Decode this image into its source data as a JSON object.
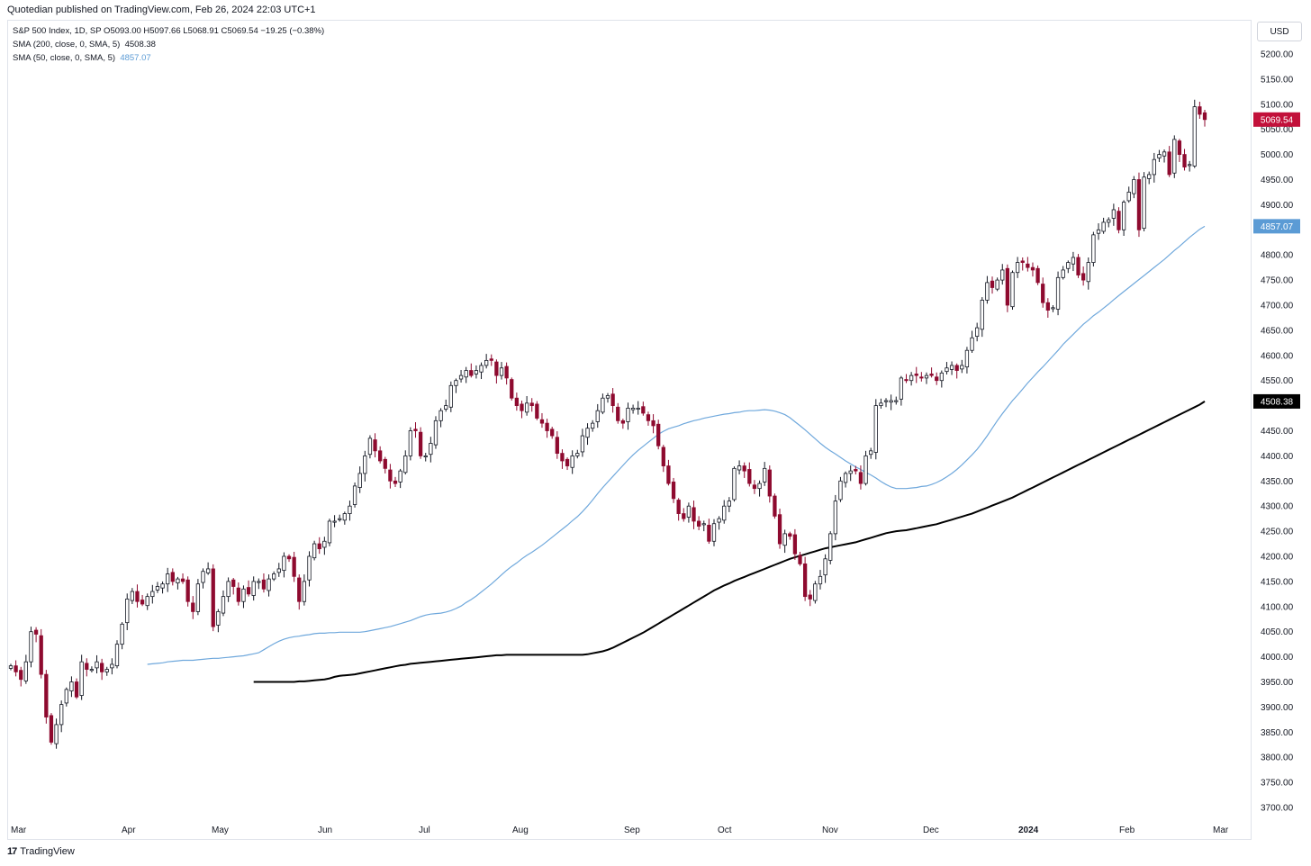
{
  "header": {
    "published": "Quotedian published on TradingView.com, Feb 26, 2024 22:03 UTC+1",
    "currency_button": "USD",
    "footer_brand": "TradingView",
    "footer_logo_glyph": "17"
  },
  "legend": {
    "symbol_line": "S&P 500 Index, 1D, SP  O5093.00  H5097.66  L5068.91  C5069.54  −19.25 (−0.38%)",
    "sma200_text": "SMA (200, close, 0, SMA, 5)",
    "sma200_value": "4508.38",
    "sma50_text": "SMA (50, close, 0, SMA, 5)",
    "sma50_value": "4857.07"
  },
  "colors": {
    "up_body": "#ffffff",
    "candle_outline": "#131722",
    "down_body": "#8e0a2f",
    "sma200": "#000000",
    "sma50": "#6fa8dc",
    "last_price_label": "#c2103a",
    "sma50_label": "#5b9bd5",
    "sma200_label": "#000000"
  },
  "chart_data": {
    "type": "candlestick",
    "title": "S&P 500 Index, 1D, SP",
    "ylim": [
      3650,
      5250
    ],
    "y_ticks": [
      3700,
      3750,
      3800,
      3850,
      3900,
      3950,
      4000,
      4050,
      4100,
      4150,
      4200,
      4250,
      4300,
      4350,
      4400,
      4450,
      4500,
      4550,
      4600,
      4650,
      4700,
      4750,
      4800,
      4850,
      4900,
      4950,
      5000,
      5050,
      5100,
      5150,
      5200
    ],
    "x_ticks": [
      {
        "label": "Mar",
        "bold": false
      },
      {
        "label": "Apr",
        "bold": false
      },
      {
        "label": "May",
        "bold": false
      },
      {
        "label": "Jun",
        "bold": false
      },
      {
        "label": "Jul",
        "bold": false
      },
      {
        "label": "Aug",
        "bold": false
      },
      {
        "label": "Sep",
        "bold": false
      },
      {
        "label": "Oct",
        "bold": false
      },
      {
        "label": "Nov",
        "bold": false
      },
      {
        "label": "Dec",
        "bold": false
      },
      {
        "label": "2024",
        "bold": true
      },
      {
        "label": "Feb",
        "bold": false
      },
      {
        "label": "Mar",
        "bold": false
      }
    ],
    "closes": [
      3982,
      3970,
      3955,
      3990,
      4050,
      4045,
      3965,
      3880,
      3830,
      3865,
      3905,
      3935,
      3950,
      3920,
      3990,
      3975,
      3975,
      3990,
      3970,
      3975,
      3985,
      4025,
      4065,
      4115,
      4130,
      4110,
      4105,
      4120,
      4130,
      4140,
      4145,
      4165,
      4150,
      4155,
      4150,
      4110,
      4090,
      4145,
      4170,
      4175,
      4060,
      4090,
      4120,
      4150,
      4140,
      4110,
      4135,
      4125,
      4150,
      4150,
      4135,
      4155,
      4165,
      4175,
      4200,
      4195,
      4160,
      4110,
      4150,
      4200,
      4225,
      4215,
      4230,
      4270,
      4270,
      4275,
      4285,
      4300,
      4340,
      4365,
      4400,
      4435,
      4410,
      4390,
      4375,
      4350,
      4345,
      4370,
      4400,
      4450,
      4450,
      4400,
      4400,
      4425,
      4470,
      4490,
      4500,
      4540,
      4550,
      4560,
      4570,
      4560,
      4570,
      4580,
      4590,
      4590,
      4560,
      4575,
      4555,
      4515,
      4500,
      4490,
      4505,
      4500,
      4475,
      4465,
      4450,
      4440,
      4405,
      4390,
      4380,
      4400,
      4405,
      4440,
      4455,
      4465,
      4490,
      4515,
      4520,
      4500,
      4470,
      4465,
      4495,
      4495,
      4495,
      4485,
      4470,
      4460,
      4420,
      4380,
      4345,
      4315,
      4285,
      4275,
      4300,
      4270,
      4260,
      4265,
      4230,
      4265,
      4275,
      4300,
      4310,
      4375,
      4380,
      4370,
      4345,
      4335,
      4345,
      4375,
      4320,
      4280,
      4225,
      4245,
      4240,
      4205,
      4185,
      4120,
      4115,
      4145,
      4160,
      4195,
      4245,
      4310,
      4350,
      4365,
      4370,
      4370,
      4345,
      4400,
      4410,
      4500,
      4505,
      4510,
      4510,
      4510,
      4555,
      4550,
      4560,
      4560,
      4555,
      4560,
      4560,
      4550,
      4565,
      4575,
      4580,
      4570,
      4580,
      4610,
      4635,
      4655,
      4710,
      4745,
      4735,
      4750,
      4770,
      4700,
      4765,
      4785,
      4785,
      4775,
      4770,
      4745,
      4705,
      4690,
      4695,
      4755,
      4770,
      4785,
      4795,
      4760,
      4750,
      4785,
      4840,
      4850,
      4865,
      4870,
      4890,
      4850,
      4905,
      4925,
      4950,
      4850,
      4955,
      4960,
      4990,
      5000,
      5005,
      4960,
      5030,
      5000,
      4975,
      4980,
      5095,
      5080,
      5069.54
    ],
    "sma50": [
      3985,
      3986,
      3987,
      3988,
      3990,
      3991,
      3992,
      3993,
      3993,
      3993,
      3994,
      3995,
      3996,
      3997,
      3997,
      3998,
      3999,
      4000,
      4001,
      4002,
      4004,
      4006,
      4008,
      4014,
      4020,
      4026,
      4031,
      4035,
      4038,
      4040,
      4041,
      4043,
      4044,
      4046,
      4047,
      4047,
      4048,
      4048,
      4049,
      4049,
      4049,
      4049,
      4049,
      4050,
      4052,
      4054,
      4056,
      4058,
      4060,
      4063,
      4066,
      4069,
      4072,
      4076,
      4080,
      4083,
      4085,
      4086,
      4087,
      4089,
      4092,
      4096,
      4101,
      4108,
      4114,
      4121,
      4129,
      4137,
      4145,
      4154,
      4163,
      4172,
      4180,
      4187,
      4195,
      4202,
      4208,
      4215,
      4222,
      4230,
      4238,
      4246,
      4254,
      4262,
      4271,
      4279,
      4289,
      4300,
      4312,
      4325,
      4337,
      4348,
      4359,
      4370,
      4381,
      4392,
      4402,
      4411,
      4419,
      4427,
      4435,
      4443,
      4449,
      4454,
      4457,
      4460,
      4464,
      4467,
      4470,
      4472,
      4475,
      4477,
      4479,
      4481,
      4483,
      4484,
      4486,
      4487,
      4489,
      4490,
      4490,
      4491,
      4492,
      4491,
      4489,
      4486,
      4482,
      4476,
      4468,
      4460,
      4452,
      4443,
      4434,
      4425,
      4417,
      4410,
      4404,
      4397,
      4390,
      4384,
      4378,
      4373,
      4367,
      4362,
      4356,
      4349,
      4343,
      4338,
      4335,
      4335,
      4335,
      4336,
      4337,
      4339,
      4340,
      4343,
      4347,
      4352,
      4358,
      4365,
      4373,
      4382,
      4392,
      4402,
      4413,
      4426,
      4440,
      4455,
      4470,
      4484,
      4497,
      4510,
      4521,
      4533,
      4545,
      4556,
      4567,
      4577,
      4588,
      4599,
      4610,
      4622,
      4632,
      4642,
      4652,
      4662,
      4670,
      4679,
      4686,
      4694,
      4702,
      4711,
      4719,
      4727,
      4735,
      4743,
      4751,
      4759,
      4767,
      4775,
      4783,
      4791,
      4800,
      4809,
      4817,
      4826,
      4835,
      4843,
      4851,
      4857.07
    ],
    "sma200": [
      3950,
      3950,
      3950,
      3950,
      3950,
      3950,
      3950,
      3950,
      3950,
      3951,
      3951,
      3952,
      3953,
      3954,
      3955,
      3957,
      3960,
      3962,
      3963,
      3964,
      3965,
      3967,
      3969,
      3971,
      3973,
      3975,
      3977,
      3979,
      3981,
      3983,
      3984,
      3986,
      3987,
      3988,
      3989,
      3990,
      3991,
      3992,
      3993,
      3994,
      3995,
      3996,
      3997,
      3998,
      3999,
      4000,
      4001,
      4002,
      4003,
      4003,
      4004,
      4004,
      4004,
      4004,
      4004,
      4004,
      4004,
      4004,
      4004,
      4004,
      4004,
      4004,
      4004,
      4004,
      4004,
      4004,
      4005,
      4007,
      4009,
      4011,
      4014,
      4018,
      4023,
      4028,
      4033,
      4038,
      4043,
      4048,
      4054,
      4060,
      4066,
      4072,
      4078,
      4084,
      4090,
      4096,
      4102,
      4108,
      4114,
      4120,
      4126,
      4132,
      4137,
      4142,
      4146,
      4151,
      4155,
      4159,
      4163,
      4167,
      4171,
      4175,
      4179,
      4183,
      4187,
      4191,
      4195,
      4198,
      4201,
      4204,
      4207,
      4210,
      4213,
      4216,
      4218,
      4220,
      4222,
      4224,
      4226,
      4228,
      4231,
      4234,
      4237,
      4240,
      4243,
      4246,
      4248,
      4250,
      4251,
      4252,
      4254,
      4256,
      4258,
      4260,
      4262,
      4264,
      4267,
      4270,
      4273,
      4276,
      4279,
      4282,
      4285,
      4289,
      4293,
      4297,
      4301,
      4305,
      4309,
      4313,
      4317,
      4322,
      4327,
      4332,
      4337,
      4342,
      4347,
      4352,
      4357,
      4362,
      4367,
      4372,
      4377,
      4382,
      4387,
      4392,
      4397,
      4402,
      4407,
      4412,
      4417,
      4422,
      4427,
      4432,
      4437,
      4442,
      4447,
      4452,
      4457,
      4462,
      4467,
      4472,
      4477,
      4482,
      4487,
      4492,
      4497,
      4502,
      4508.38
    ],
    "last_close": 5069.54,
    "last_close_label": "5069.54",
    "sma50_label": "4857.07",
    "sma200_label": "4508.38"
  }
}
